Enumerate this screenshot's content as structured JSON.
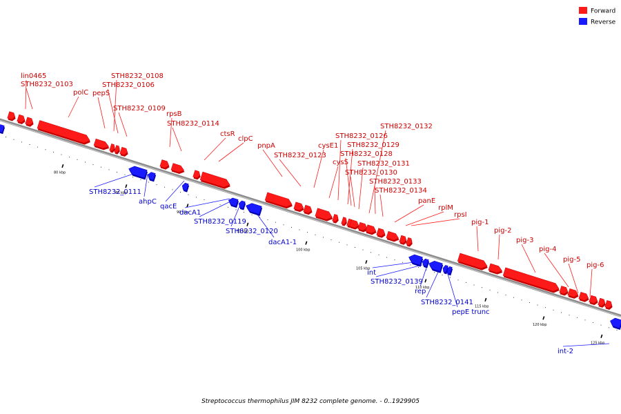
{
  "colors": {
    "forward": "#ff1a1a",
    "forward_dark": "#c40000",
    "reverse": "#1a1aff",
    "reverse_dark": "#0000b0",
    "backbone": "#8c8c8c"
  },
  "legend": [
    {
      "label": "Forward",
      "color": "#ff1a1a"
    },
    {
      "label": "Reverse",
      "color": "#1a1aff"
    }
  ],
  "caption": "Streptococcus thermophilus JIM 8232 complete genome. - 0..1929905",
  "tick_labels": [
    "80 kbp",
    "85 kbp",
    "90 kbp",
    "95 kbp",
    "100 kbp",
    "105 kbp",
    "110 kbp",
    "115 kbp",
    "120 kbp",
    "125 kbp"
  ],
  "forward_labels": [
    "lin0465",
    "STH8232_0103",
    "polC",
    "pepS",
    "STH8232_0108",
    "STH8232_0106",
    "STH8232_0109",
    "rpsB",
    "STH8232_0114",
    "ctsR",
    "clpC",
    "pnpA",
    "STH8232_0123",
    "cysE1",
    "cysS",
    "STH8232_0126",
    "STH8232_0129",
    "STH8232_0128",
    "STH8232_0132",
    "STH8232_0131",
    "STH8232_0130",
    "STH8232_0133",
    "STH8232_0134",
    "panE",
    "rplM",
    "rpsI",
    "pig-1",
    "pig-2",
    "pig-3",
    "pig-4",
    "pig-5",
    "pig-6"
  ],
  "reverse_labels": [
    "STH8232_0111",
    "ahpC",
    "qacE",
    "dacA1",
    "STH8232_0119",
    "STH8232_0120",
    "dacA1-1",
    "int",
    "STH8232_0139",
    "rep",
    "STH8232_0141",
    "pepE trunc",
    "int-2"
  ]
}
